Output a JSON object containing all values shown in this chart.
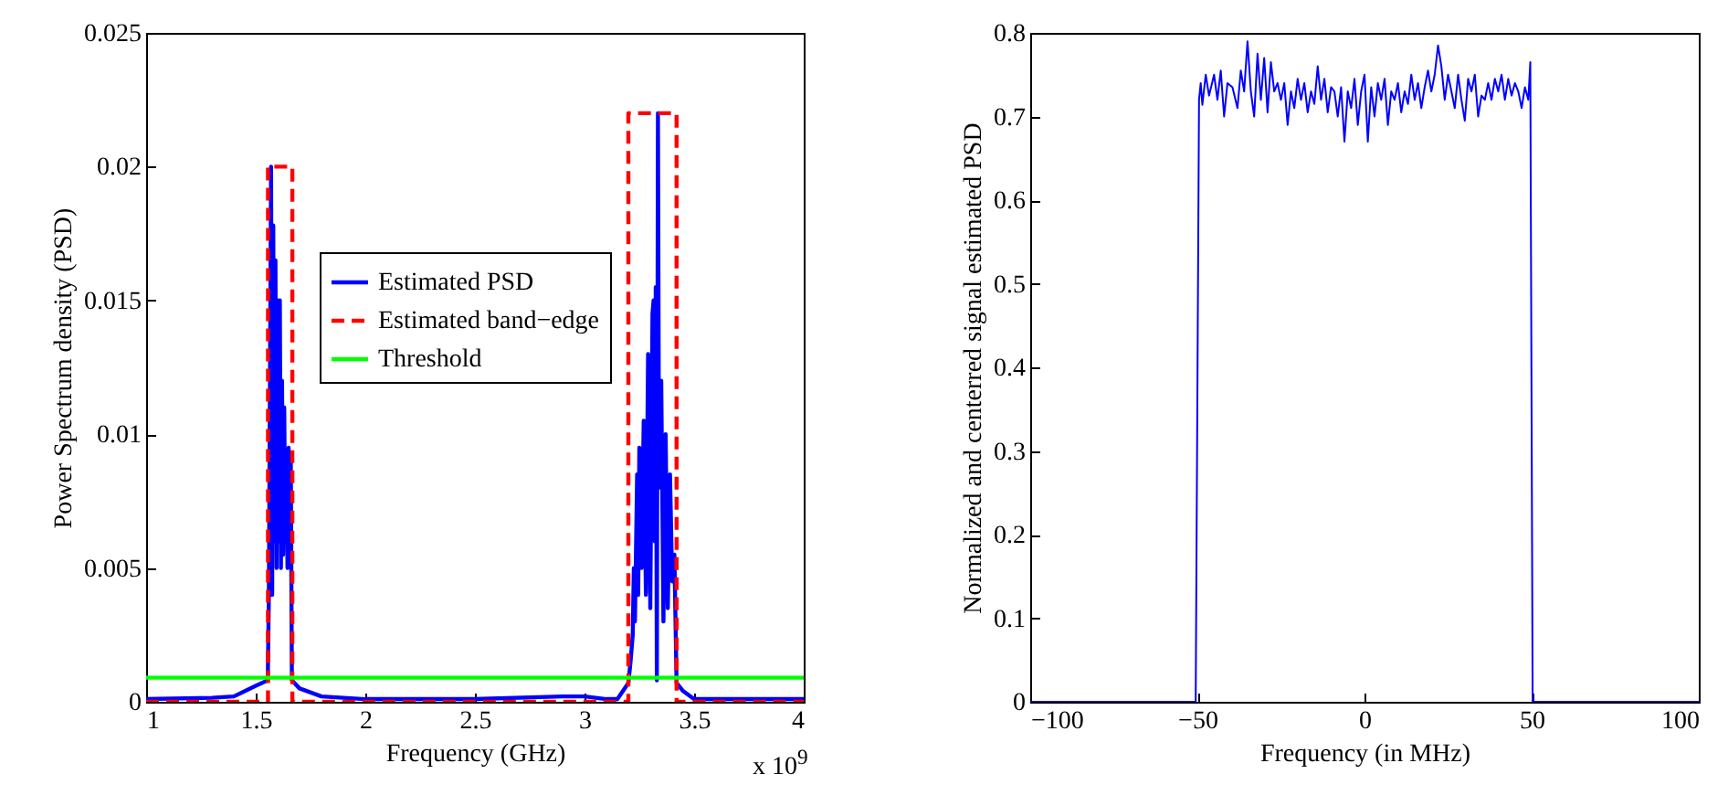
{
  "chart_data": [
    {
      "type": "line",
      "xlabel": "Frequency (GHz)",
      "ylabel": "Power Spectrum density (PSD)",
      "xlim": [
        1,
        4
      ],
      "ylim": [
        0,
        0.025
      ],
      "xticks": [
        1,
        1.5,
        2,
        2.5,
        3,
        3.5,
        4
      ],
      "yticks": [
        0,
        0.005,
        0.01,
        0.015,
        0.02,
        0.025
      ],
      "grid": false,
      "legend": "right",
      "annotations": [
        "x 10$^{9}$"
      ],
      "series": [
        {
          "name": "Estimated PSD",
          "color": "#0000ff",
          "line_style": "solid",
          "x": [
            1,
            1.3,
            1.4,
            1.5,
            1.555,
            1.56,
            1.57,
            1.575,
            1.58,
            1.585,
            1.59,
            1.595,
            1.6,
            1.605,
            1.61,
            1.615,
            1.62,
            1.625,
            1.63,
            1.635,
            1.64,
            1.645,
            1.65,
            1.655,
            1.66,
            1.665,
            1.7,
            1.8,
            2,
            2.5,
            2.9,
            3,
            3.1,
            3.15,
            3.2,
            3.21,
            3.22,
            3.225,
            3.23,
            3.24,
            3.245,
            3.25,
            3.26,
            3.27,
            3.28,
            3.29,
            3.3,
            3.31,
            3.315,
            3.32,
            3.325,
            3.33,
            3.335,
            3.34,
            3.35,
            3.36,
            3.37,
            3.38,
            3.39,
            3.4,
            3.41,
            3.42,
            3.45,
            3.5,
            4
          ],
          "values": [
            0.0001,
            0.00015,
            0.0002,
            0.0006,
            0.0008,
            0.004,
            0.02,
            0.004,
            0.0178,
            0.006,
            0.0165,
            0.005,
            0.015,
            0.006,
            0.015,
            0.005,
            0.012,
            0.0055,
            0.011,
            0.006,
            0.009,
            0.005,
            0.0095,
            0.0065,
            0.009,
            0.0008,
            0.0005,
            0.0002,
            0.0001,
            0.0001,
            0.0002,
            0.0002,
            0.0001,
            0.0001,
            0.0007,
            0.0015,
            0.0025,
            0.005,
            0.003,
            0.0085,
            0.004,
            0.0095,
            0.005,
            0.0105,
            0.004,
            0.013,
            0.0035,
            0.0145,
            0.015,
            0.006,
            0.0155,
            0.0008,
            0.022,
            0.008,
            0.012,
            0.003,
            0.01,
            0.0035,
            0.0085,
            0.0045,
            0.0055,
            0.0007,
            0.0004,
            0.0001,
            0.0001
          ]
        },
        {
          "name": "Estimated band−edge",
          "color": "#ff0000",
          "line_style": "dashed",
          "x": [
            1,
            1.556,
            1.556,
            1.667,
            1.667,
            3.2,
            3.2,
            3.42,
            3.42,
            4
          ],
          "values": [
            0,
            0,
            0.02,
            0.02,
            0,
            0,
            0.022,
            0.022,
            0,
            0
          ]
        },
        {
          "name": "Threshold",
          "color": "#00ff00",
          "line_style": "solid",
          "x": [
            1,
            4
          ],
          "values": [
            0.0009,
            0.0009
          ]
        }
      ]
    },
    {
      "type": "line",
      "xlabel": "Frequency (in MHz)",
      "ylabel": "Normalized and centerred signal estimated PSD",
      "xlim": [
        -100,
        100
      ],
      "ylim": [
        0,
        0.8
      ],
      "xticks": [
        -100,
        -50,
        0,
        50,
        100
      ],
      "yticks": [
        0,
        0.1,
        0.2,
        0.3,
        0.4,
        0.5,
        0.6,
        0.7,
        0.8
      ],
      "grid": false,
      "legend": false,
      "series": [
        {
          "color": "#0000ff",
          "line_style": "solid",
          "x": [
            -100,
            -50.5,
            -49.5,
            -49,
            -48.5,
            -47.5,
            -46.5,
            -45,
            -44,
            -43,
            -42,
            -41,
            -39.5,
            -38,
            -37,
            -36,
            -35,
            -34,
            -33,
            -32,
            -31,
            -30,
            -29,
            -28,
            -27,
            -26,
            -25,
            -24,
            -23,
            -22,
            -21,
            -20,
            -19,
            -18,
            -17,
            -16,
            -15,
            -14,
            -13,
            -12,
            -11,
            -10,
            -9,
            -8,
            -7,
            -6,
            -5,
            -4,
            -3,
            -2,
            -1,
            0,
            1,
            2,
            3,
            4,
            5,
            6,
            7,
            8,
            9,
            10,
            11,
            12,
            13,
            14,
            15,
            16,
            17,
            18,
            19,
            20,
            21,
            22,
            23,
            24,
            25,
            26,
            27,
            28,
            29,
            30,
            31,
            32,
            33,
            34,
            35,
            36,
            37,
            38,
            39,
            40,
            41,
            42,
            43,
            44,
            45,
            46,
            47,
            48,
            49,
            49.6,
            50.3,
            100
          ],
          "values": [
            0,
            0,
            0.72,
            0.74,
            0.714,
            0.75,
            0.725,
            0.75,
            0.72,
            0.755,
            0.7,
            0.74,
            0.735,
            0.71,
            0.755,
            0.73,
            0.79,
            0.73,
            0.7,
            0.775,
            0.72,
            0.77,
            0.705,
            0.765,
            0.73,
            0.74,
            0.72,
            0.74,
            0.69,
            0.73,
            0.71,
            0.745,
            0.72,
            0.74,
            0.705,
            0.73,
            0.715,
            0.76,
            0.72,
            0.745,
            0.705,
            0.735,
            0.73,
            0.7,
            0.735,
            0.67,
            0.73,
            0.71,
            0.745,
            0.69,
            0.73,
            0.75,
            0.67,
            0.735,
            0.7,
            0.74,
            0.72,
            0.745,
            0.69,
            0.73,
            0.72,
            0.74,
            0.705,
            0.73,
            0.715,
            0.75,
            0.72,
            0.74,
            0.71,
            0.735,
            0.755,
            0.73,
            0.75,
            0.785,
            0.76,
            0.72,
            0.75,
            0.73,
            0.71,
            0.75,
            0.72,
            0.695,
            0.745,
            0.73,
            0.75,
            0.7,
            0.725,
            0.72,
            0.74,
            0.72,
            0.745,
            0.73,
            0.75,
            0.72,
            0.745,
            0.725,
            0.74,
            0.73,
            0.71,
            0.735,
            0.72,
            0.765,
            0,
            0
          ]
        }
      ]
    }
  ]
}
